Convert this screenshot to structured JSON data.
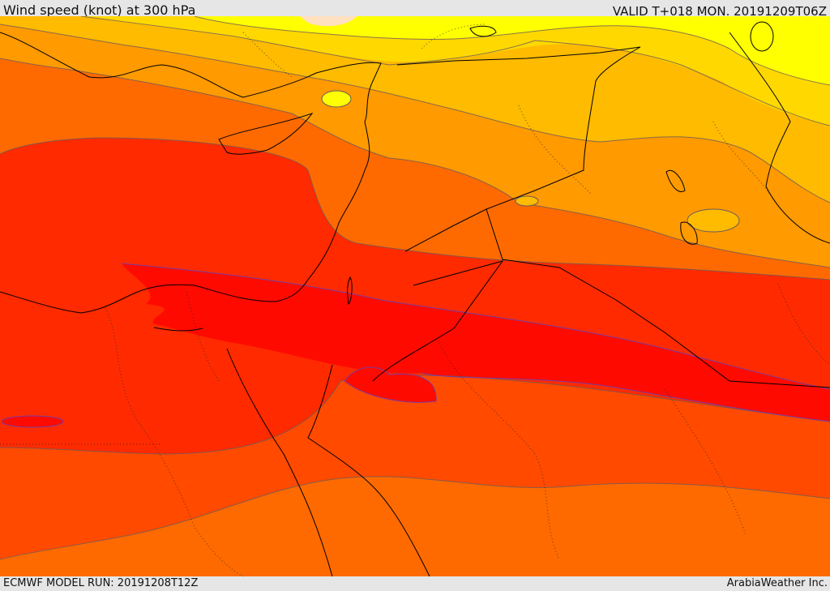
{
  "header": {
    "title": "Wind speed (knot) at 300 hPa",
    "valid": "VALID T+018 MON. 20191209T06Z"
  },
  "footer": {
    "model_run": "ECMWF MODEL RUN: 20191208T12Z",
    "credit": "ArabiaWeather Inc."
  },
  "colors": {
    "band_1": "#ffff00",
    "band_2": "#ffd800",
    "band_3": "#ffbb00",
    "band_4": "#ff9a00",
    "band_5": "#ff6a00",
    "band_6": "#ff4a00",
    "band_7": "#ff2a00",
    "band_8": "#ff0a00",
    "contour": "#6b5a5a",
    "coast": "#000000"
  }
}
